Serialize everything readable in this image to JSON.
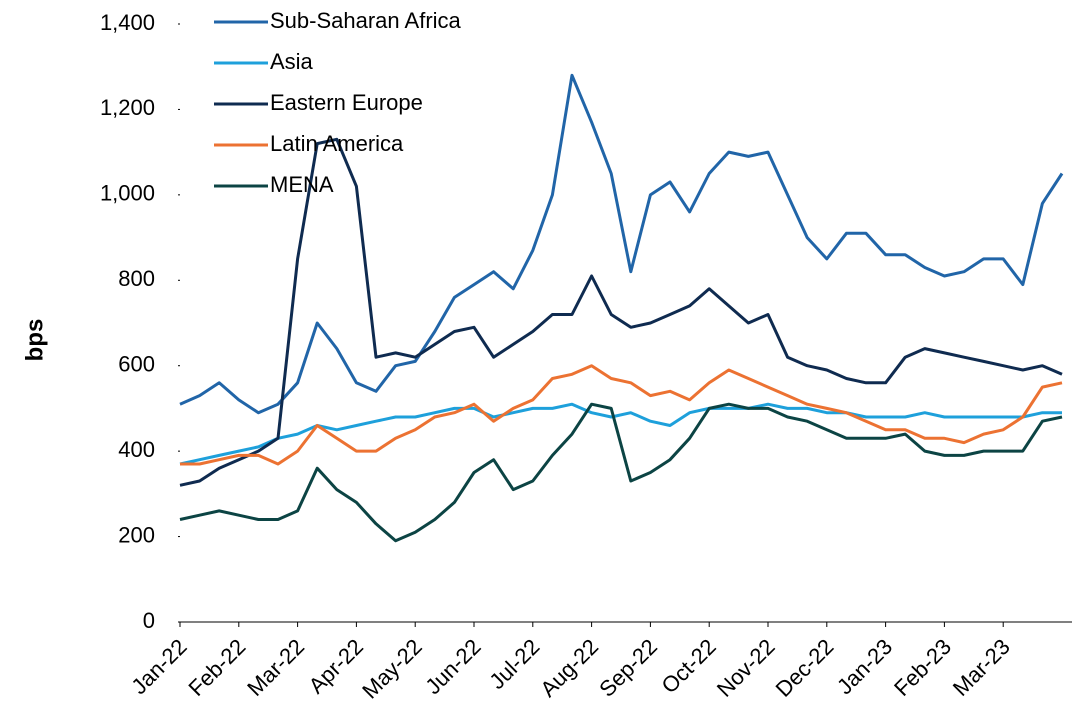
{
  "chart_data": {
    "type": "line",
    "y_label": "bps",
    "categories": [
      "Jan-22",
      null,
      null,
      "Feb-22",
      null,
      null,
      "Mar-22",
      null,
      null,
      "Apr-22",
      null,
      null,
      "May-22",
      null,
      null,
      "Jun-22",
      null,
      null,
      "Jul-22",
      null,
      null,
      "Aug-22",
      null,
      null,
      "Sep-22",
      null,
      null,
      "Oct-22",
      null,
      null,
      "Nov-22",
      null,
      null,
      "Dec-22",
      null,
      null,
      "Jan-23",
      null,
      null,
      "Feb-23",
      null,
      null,
      "Mar-23",
      null,
      null,
      null
    ],
    "series": [
      {
        "name": "Sub-Saharan Africa",
        "color": "#2165a8",
        "values": [
          510,
          530,
          560,
          520,
          490,
          510,
          560,
          700,
          640,
          560,
          540,
          600,
          610,
          680,
          760,
          790,
          820,
          780,
          870,
          1000,
          1280,
          1170,
          1050,
          820,
          1000,
          1030,
          960,
          1050,
          1100,
          1090,
          1100,
          1000,
          900,
          850,
          910,
          910,
          860,
          860,
          830,
          810,
          820,
          850,
          850,
          790,
          980,
          1050
        ]
      },
      {
        "name": "Asia",
        "color": "#1ea0db",
        "values": [
          370,
          380,
          390,
          400,
          410,
          430,
          440,
          460,
          450,
          460,
          470,
          480,
          480,
          490,
          500,
          500,
          480,
          490,
          500,
          500,
          510,
          490,
          480,
          490,
          470,
          460,
          490,
          500,
          500,
          500,
          510,
          500,
          500,
          490,
          490,
          480,
          480,
          480,
          490,
          480,
          480,
          480,
          480,
          480,
          490,
          490
        ]
      },
      {
        "name": "Eastern Europe",
        "color": "#0f2b50",
        "values": [
          320,
          330,
          360,
          380,
          400,
          430,
          850,
          1120,
          1130,
          1020,
          620,
          630,
          620,
          650,
          680,
          690,
          620,
          650,
          680,
          720,
          720,
          810,
          720,
          690,
          700,
          720,
          740,
          780,
          740,
          700,
          720,
          620,
          600,
          590,
          570,
          560,
          560,
          620,
          640,
          630,
          620,
          610,
          600,
          590,
          600,
          580
        ]
      },
      {
        "name": "Latin America",
        "color": "#ec7232",
        "values": [
          370,
          370,
          380,
          390,
          390,
          370,
          400,
          460,
          430,
          400,
          400,
          430,
          450,
          480,
          490,
          510,
          470,
          500,
          520,
          570,
          580,
          600,
          570,
          560,
          530,
          540,
          520,
          560,
          590,
          570,
          550,
          530,
          510,
          500,
          490,
          470,
          450,
          450,
          430,
          430,
          420,
          440,
          450,
          480,
          550,
          560
        ]
      },
      {
        "name": "MENA",
        "color": "#0c4444",
        "values": [
          240,
          250,
          260,
          250,
          240,
          240,
          260,
          360,
          310,
          280,
          230,
          190,
          210,
          240,
          280,
          350,
          380,
          310,
          330,
          390,
          440,
          510,
          500,
          330,
          350,
          380,
          430,
          500,
          510,
          500,
          500,
          480,
          470,
          450,
          430,
          430,
          430,
          440,
          400,
          390,
          390,
          400,
          400,
          400,
          470,
          480
        ]
      }
    ],
    "ylim": [
      0,
      1400
    ],
    "yticks": [
      0,
      200,
      400,
      600,
      800,
      {
        "value": 1000,
        "label": "1,000"
      },
      {
        "value": 1200,
        "label": "1,200"
      },
      {
        "value": 1400,
        "label": "1,400"
      }
    ],
    "legend": "top-left"
  }
}
